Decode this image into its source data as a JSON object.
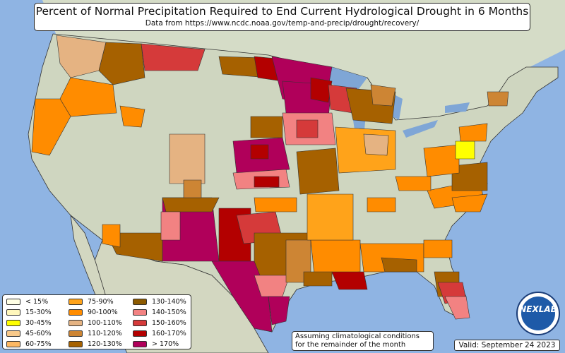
{
  "title": "Percent of Normal Precipitation Required to End Current Hydrological Drought in 6 Months",
  "subtitle": "Data from https://www.ncdc.noaa.gov/temp-and-precip/drought/recovery/",
  "note_line1": "Assuming climatological conditions",
  "note_line2": "for the remainder of the month",
  "valid": "Valid: September 24 2023",
  "logo_text": "NEXLAB",
  "colors": {
    "ocean": "#8fb4e3",
    "land": "#cfd8c2",
    "lake": "#7fa6d6"
  },
  "legend": [
    {
      "label": "< 15%",
      "color": "#ffffe5"
    },
    {
      "label": "15-30%",
      "color": "#fff7bc"
    },
    {
      "label": "30-45%",
      "color": "#ffff00"
    },
    {
      "label": "45-60%",
      "color": "#f8c98a"
    },
    {
      "label": "60-75%",
      "color": "#fdb863"
    },
    {
      "label": "75-90%",
      "color": "#ffa31a"
    },
    {
      "label": "90-100%",
      "color": "#ff8c00"
    },
    {
      "label": "100-110%",
      "color": "#e5b382"
    },
    {
      "label": "110-120%",
      "color": "#cd8534"
    },
    {
      "label": "120-130%",
      "color": "#a66100"
    },
    {
      "label": "130-140%",
      "color": "#8c5a00"
    },
    {
      "label": "140-150%",
      "color": "#f28282"
    },
    {
      "label": "150-160%",
      "color": "#d53a3a"
    },
    {
      "label": "160-170%",
      "color": "#b30000"
    },
    {
      "label": "> 170%",
      "color": "#b0005a"
    }
  ]
}
